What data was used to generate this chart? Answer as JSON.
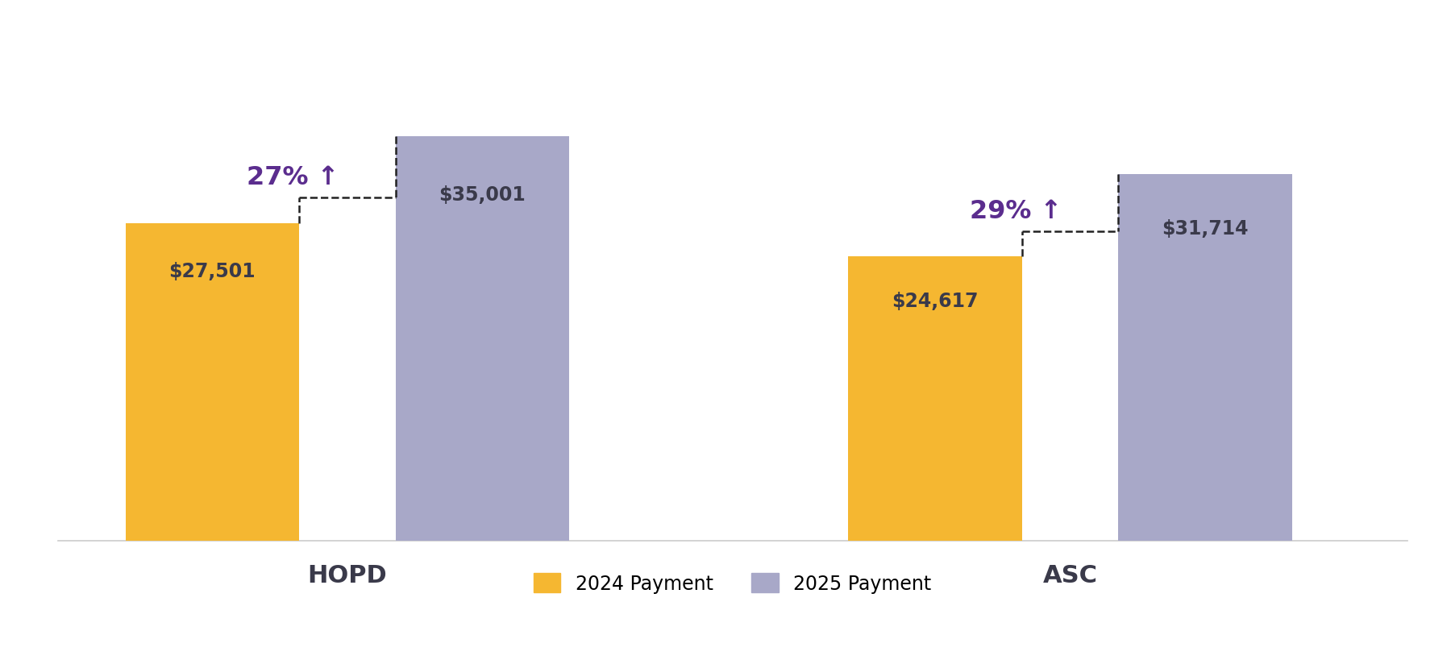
{
  "groups": [
    "HOPD",
    "ASC"
  ],
  "values_2024": [
    27501,
    24617
  ],
  "values_2025": [
    35001,
    31714
  ],
  "labels_2024": [
    "$27,501",
    "$24,617"
  ],
  "labels_2025": [
    "$35,001",
    "$31,714"
  ],
  "pct_change": [
    "27% ↑",
    "29% ↑"
  ],
  "color_2024": "#F5B731",
  "color_2025": "#A8A8C8",
  "bar_width": 0.18,
  "group_positions": [
    0.3,
    1.05
  ],
  "bar_gap": 0.1,
  "ylim": [
    0,
    44000
  ],
  "xlabel_fontsize": 22,
  "value_fontsize": 17,
  "pct_fontsize": 23,
  "legend_fontsize": 17,
  "label_color": "#3a3a4a",
  "pct_color": "#5B2D8E",
  "background_color": "#ffffff",
  "dashed_color": "#222222",
  "group_label_fontweight": "bold",
  "xlim": [
    0.0,
    1.4
  ]
}
